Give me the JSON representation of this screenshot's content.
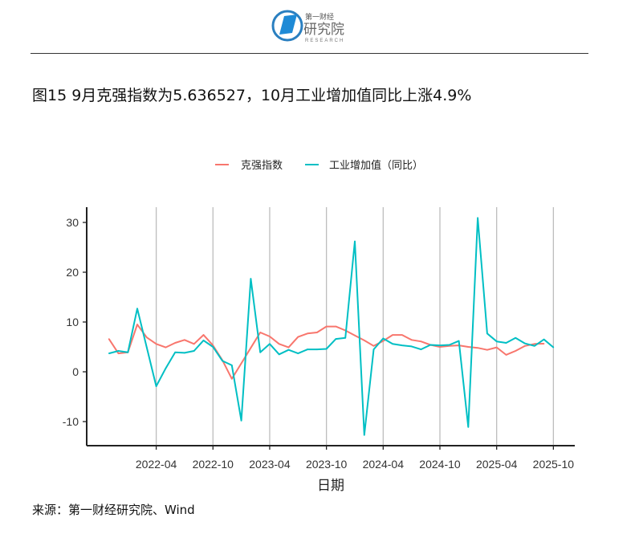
{
  "header": {
    "logo_text": "第一财经研究院 RESEARCH",
    "title": "图15 9月克强指数为5.636527，10月工业增加值同比上涨4.9%"
  },
  "source": "来源：第一财经研究院、Wind",
  "colors": {
    "keqiang": "#F8766D",
    "industrial": "#00BFC4"
  },
  "chart_data": {
    "type": "line",
    "xlabel": "日期",
    "ylabel": "",
    "legend_position": "top",
    "grid": "vertical major gridlines only",
    "ylim": [
      -15,
      33
    ],
    "y_ticks": [
      30,
      20,
      10,
      0,
      -10
    ],
    "x_ticks": [
      "2022-04",
      "2022-10",
      "2023-04",
      "2023-10",
      "2024-04",
      "2024-10",
      "2025-04",
      "2025-10"
    ],
    "x_start": "2021-11",
    "series": [
      {
        "name": "克强指数",
        "color": "#F8766D",
        "values": [
          6.6,
          3.7,
          3.9,
          9.5,
          6.9,
          5.6,
          4.9,
          5.8,
          6.4,
          5.6,
          7.4,
          5.3,
          2.3,
          -1.4,
          1.7,
          4.8,
          7.9,
          7.1,
          5.6,
          4.9,
          7.0,
          7.7,
          7.9,
          9.1,
          9.1,
          8.3,
          7.3,
          6.3,
          5.2,
          6.2,
          7.4,
          7.4,
          6.4,
          6.1,
          5.4,
          5.0,
          5.2,
          5.3,
          5.0,
          4.8,
          4.4,
          4.9,
          3.4,
          4.2,
          5.2,
          5.6,
          5.64
        ]
      },
      {
        "name": "工业增加值（同比）",
        "color": "#00BFC4",
        "values": [
          3.7,
          4.2,
          3.9,
          12.7,
          4.9,
          -2.9,
          0.7,
          3.9,
          3.8,
          4.2,
          6.3,
          5.0,
          2.2,
          1.3,
          -9.8,
          18.7,
          3.9,
          5.6,
          3.5,
          4.4,
          3.7,
          4.5,
          4.5,
          4.6,
          6.6,
          6.8,
          26.2,
          -12.7,
          4.5,
          6.7,
          5.6,
          5.3,
          5.1,
          4.5,
          5.4,
          5.3,
          5.4,
          6.2,
          -11.1,
          30.9,
          7.7,
          6.1,
          5.8,
          6.8,
          5.7,
          5.2,
          6.5,
          4.9
        ]
      }
    ]
  }
}
